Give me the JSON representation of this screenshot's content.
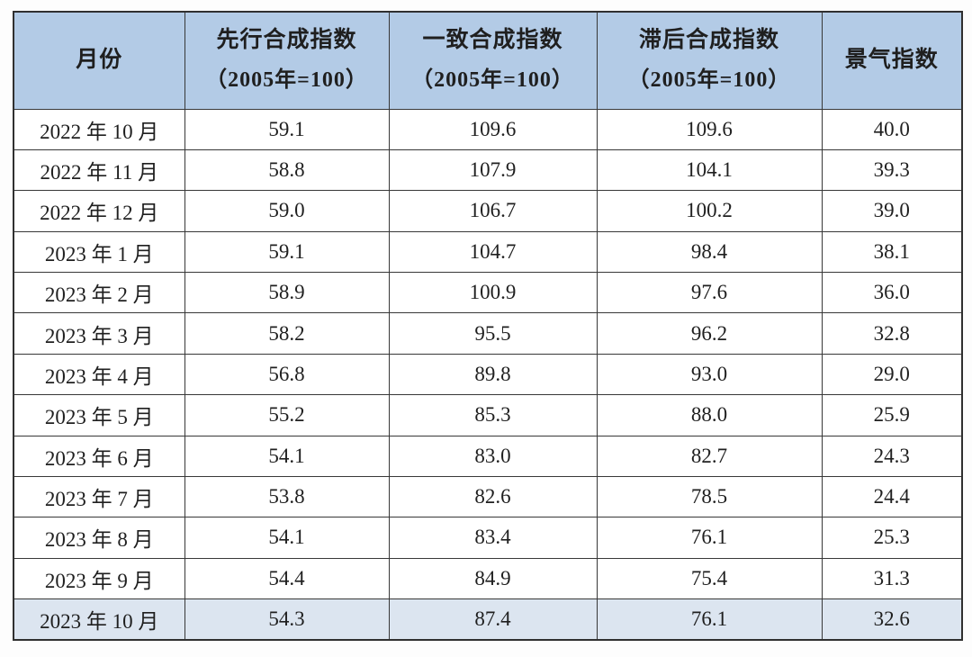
{
  "colors": {
    "header_bg": "#b3cbe6",
    "highlight_row_bg": "#dce5f0",
    "border": "#383838",
    "text": "#1f1f1f",
    "row_bg": "#ffffff"
  },
  "chart_data": {
    "type": "table",
    "columns": [
      {
        "label": "月份",
        "sublabel": ""
      },
      {
        "label": "先行合成指数",
        "sublabel": "（2005年=100）"
      },
      {
        "label": "一致合成指数",
        "sublabel": "（2005年=100）"
      },
      {
        "label": "滞后合成指数",
        "sublabel": "（2005年=100）"
      },
      {
        "label": "景气指数",
        "sublabel": ""
      }
    ],
    "rows": [
      {
        "month": "2022 年 10 月",
        "leading": "59.1",
        "coincident": "109.6",
        "lagging": "109.6",
        "prosperity": "40.0",
        "highlight": false
      },
      {
        "month": "2022 年 11 月",
        "leading": "58.8",
        "coincident": "107.9",
        "lagging": "104.1",
        "prosperity": "39.3",
        "highlight": false
      },
      {
        "month": "2022 年 12 月",
        "leading": "59.0",
        "coincident": "106.7",
        "lagging": "100.2",
        "prosperity": "39.0",
        "highlight": false
      },
      {
        "month": "2023 年 1 月",
        "leading": "59.1",
        "coincident": "104.7",
        "lagging": "98.4",
        "prosperity": "38.1",
        "highlight": false
      },
      {
        "month": "2023 年 2 月",
        "leading": "58.9",
        "coincident": "100.9",
        "lagging": "97.6",
        "prosperity": "36.0",
        "highlight": false
      },
      {
        "month": "2023 年 3 月",
        "leading": "58.2",
        "coincident": "95.5",
        "lagging": "96.2",
        "prosperity": "32.8",
        "highlight": false
      },
      {
        "month": "2023 年 4 月",
        "leading": "56.8",
        "coincident": "89.8",
        "lagging": "93.0",
        "prosperity": "29.0",
        "highlight": false
      },
      {
        "month": "2023 年 5 月",
        "leading": "55.2",
        "coincident": "85.3",
        "lagging": "88.0",
        "prosperity": "25.9",
        "highlight": false
      },
      {
        "month": "2023 年 6 月",
        "leading": "54.1",
        "coincident": "83.0",
        "lagging": "82.7",
        "prosperity": "24.3",
        "highlight": false
      },
      {
        "month": "2023 年 7 月",
        "leading": "53.8",
        "coincident": "82.6",
        "lagging": "78.5",
        "prosperity": "24.4",
        "highlight": false
      },
      {
        "month": "2023 年 8 月",
        "leading": "54.1",
        "coincident": "83.4",
        "lagging": "76.1",
        "prosperity": "25.3",
        "highlight": false
      },
      {
        "month": "2023 年 9 月",
        "leading": "54.4",
        "coincident": "84.9",
        "lagging": "75.4",
        "prosperity": "31.3",
        "highlight": false
      },
      {
        "month": "2023 年 10 月",
        "leading": "54.3",
        "coincident": "87.4",
        "lagging": "76.1",
        "prosperity": "32.6",
        "highlight": true
      }
    ]
  }
}
